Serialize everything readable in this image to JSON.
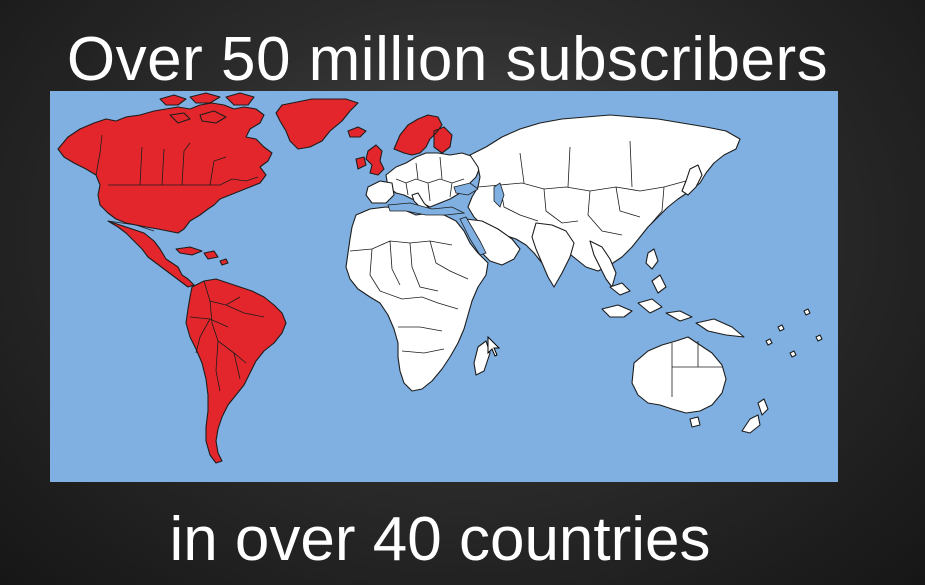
{
  "slide": {
    "headline": "Over 50 million subscribers",
    "footline": "in over 40 countries"
  },
  "map": {
    "ocean_color": "#7fb0e1",
    "highlight_color": "#e3262b",
    "default_land_color": "#ffffff",
    "highlighted_regions": [
      "North America",
      "Central America",
      "South America",
      "Greenland",
      "United Kingdom",
      "Ireland",
      "Nordic countries"
    ],
    "other_regions": [
      "Europe",
      "Africa",
      "Asia",
      "Australia",
      "New Zealand"
    ]
  },
  "pointer": {
    "icon": "cursor-arrow-icon"
  }
}
